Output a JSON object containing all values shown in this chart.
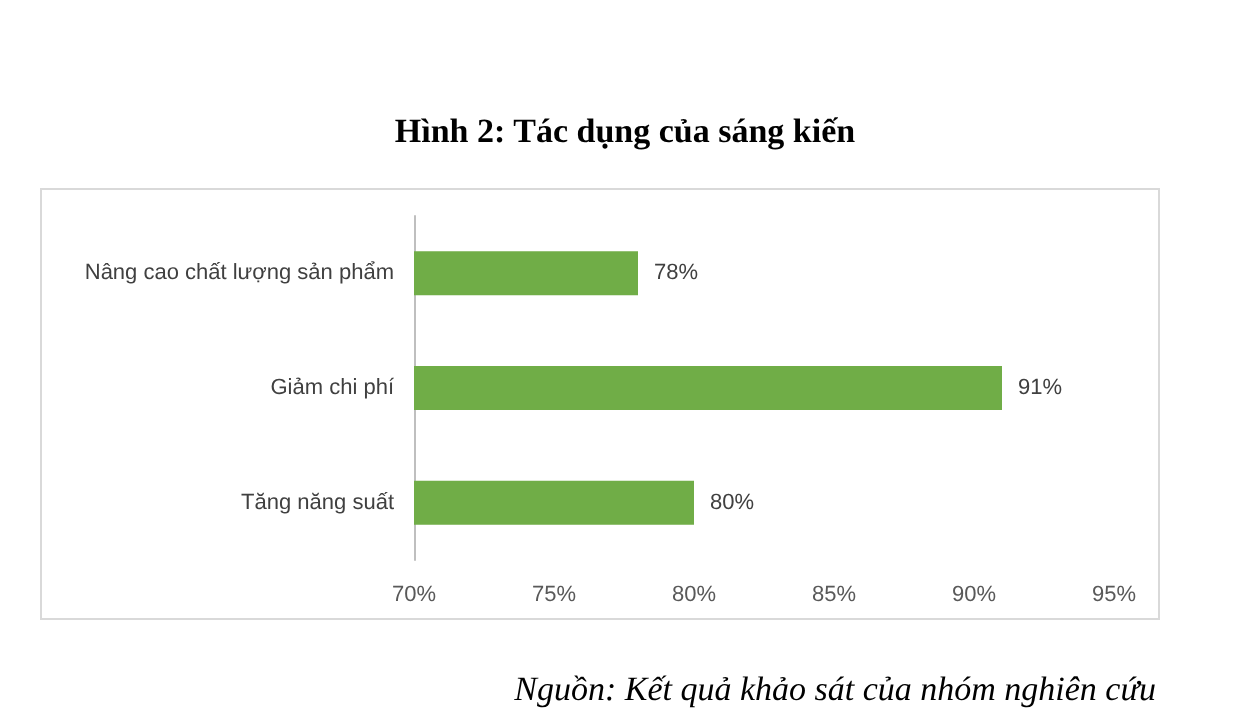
{
  "chart_data": {
    "type": "bar",
    "orientation": "horizontal",
    "title": "Hình 2: Tác dụng của sáng kiến",
    "categories": [
      "Nâng cao chất lượng sản phẩm",
      "Giảm chi phí",
      "Tăng năng suất"
    ],
    "values": [
      78,
      91,
      80
    ],
    "value_labels": [
      "78%",
      "91%",
      "80%"
    ],
    "color": "#70ad47",
    "xlim": [
      70,
      95
    ],
    "xticks": [
      {
        "value": 70,
        "label": "70%"
      },
      {
        "value": 75,
        "label": "75%"
      },
      {
        "value": 80,
        "label": "80%"
      },
      {
        "value": 85,
        "label": "85%"
      },
      {
        "value": 90,
        "label": "90%"
      },
      {
        "value": 95,
        "label": "95%"
      }
    ],
    "grid": false,
    "annotations": [
      "Nguồn: Kết quả khảo sát của nhóm nghiên cứu"
    ]
  }
}
